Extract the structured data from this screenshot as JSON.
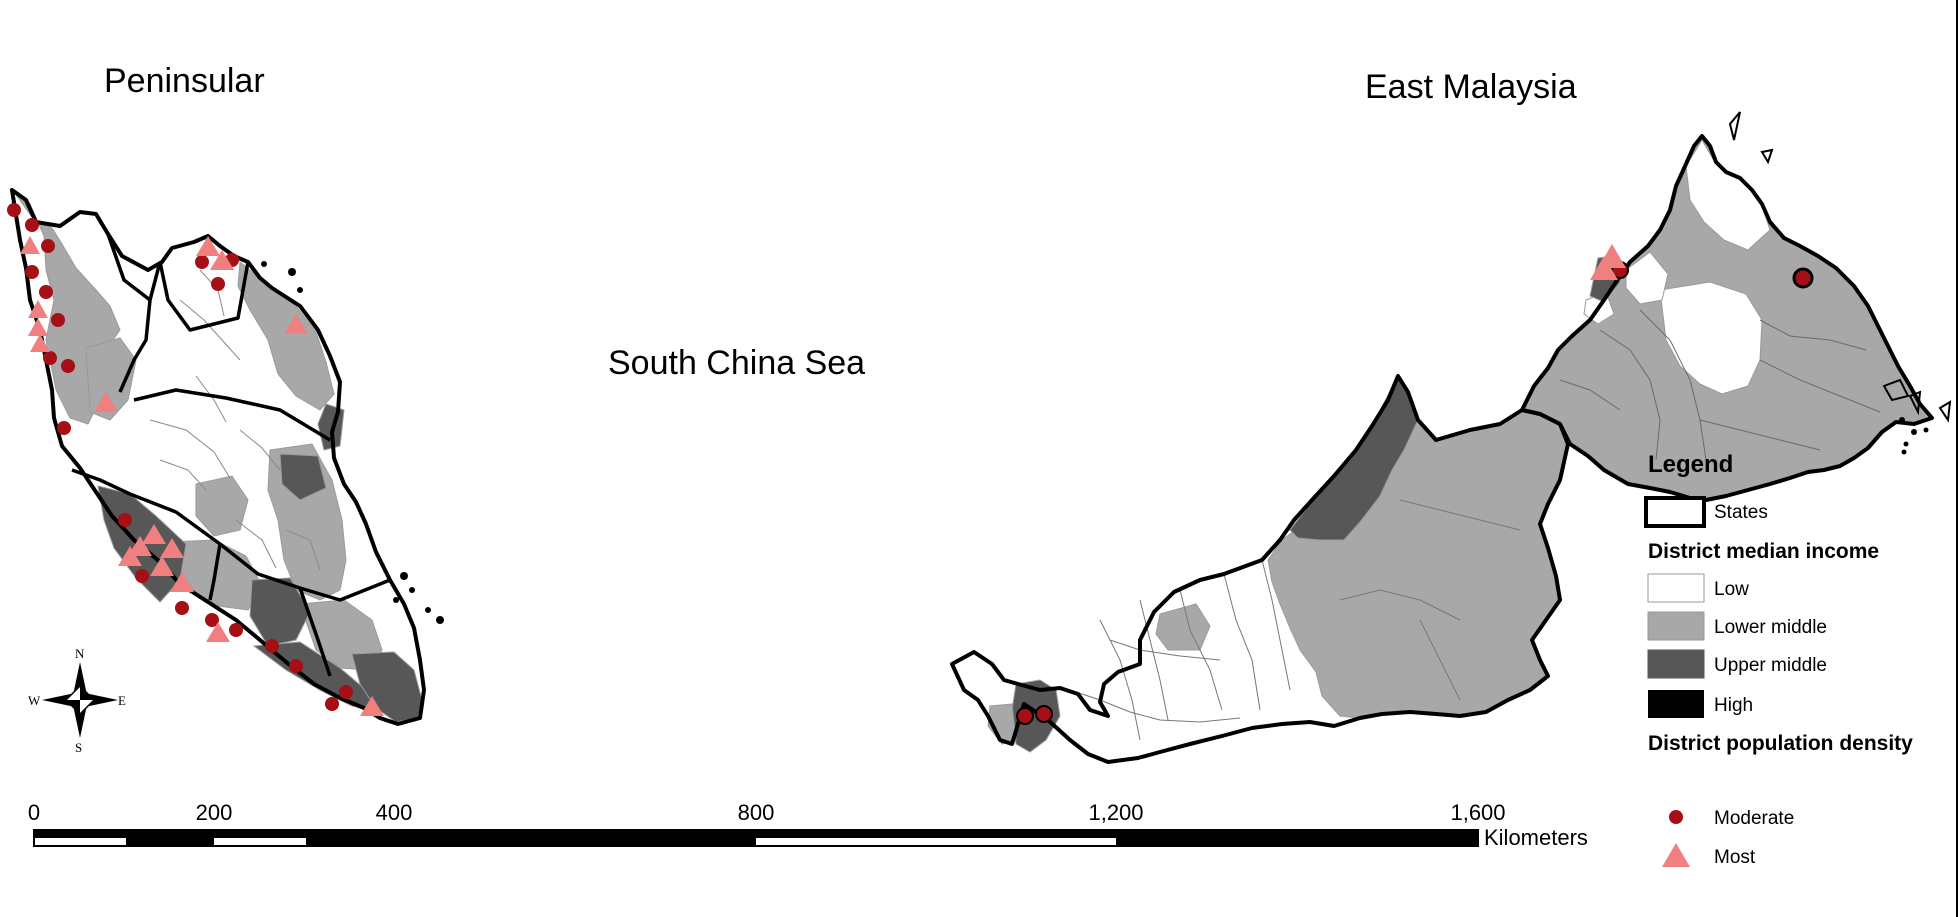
{
  "titles": {
    "peninsular": "Peninsular",
    "east": "East Malaysia",
    "sea": "South China Sea"
  },
  "income_colors": {
    "low": "#ffffff",
    "lower_middle": "#a8a8a8",
    "upper_middle": "#575757",
    "high": "#000000"
  },
  "density_colors": {
    "moderate": "#a50f15",
    "most": "#f08080"
  },
  "legend": {
    "title": "Legend",
    "states_label": "States",
    "income_heading": "District median income",
    "income_items": [
      {
        "label": "Low",
        "key": "low"
      },
      {
        "label": "Lower middle",
        "key": "lower_middle"
      },
      {
        "label": "Upper middle",
        "key": "upper_middle"
      },
      {
        "label": "High",
        "key": "high"
      }
    ],
    "density_heading": "District population density",
    "density_items": [
      {
        "label": "Moderate",
        "symbol": "circle"
      },
      {
        "label": "Most",
        "symbol": "triangle"
      }
    ]
  },
  "compass": {
    "n": "N",
    "s": "S",
    "e": "E",
    "w": "W"
  },
  "scale": {
    "ticks": [
      "0",
      "200",
      "400",
      "800",
      "1,200",
      "1,600"
    ],
    "unit": "Kilometers"
  }
}
